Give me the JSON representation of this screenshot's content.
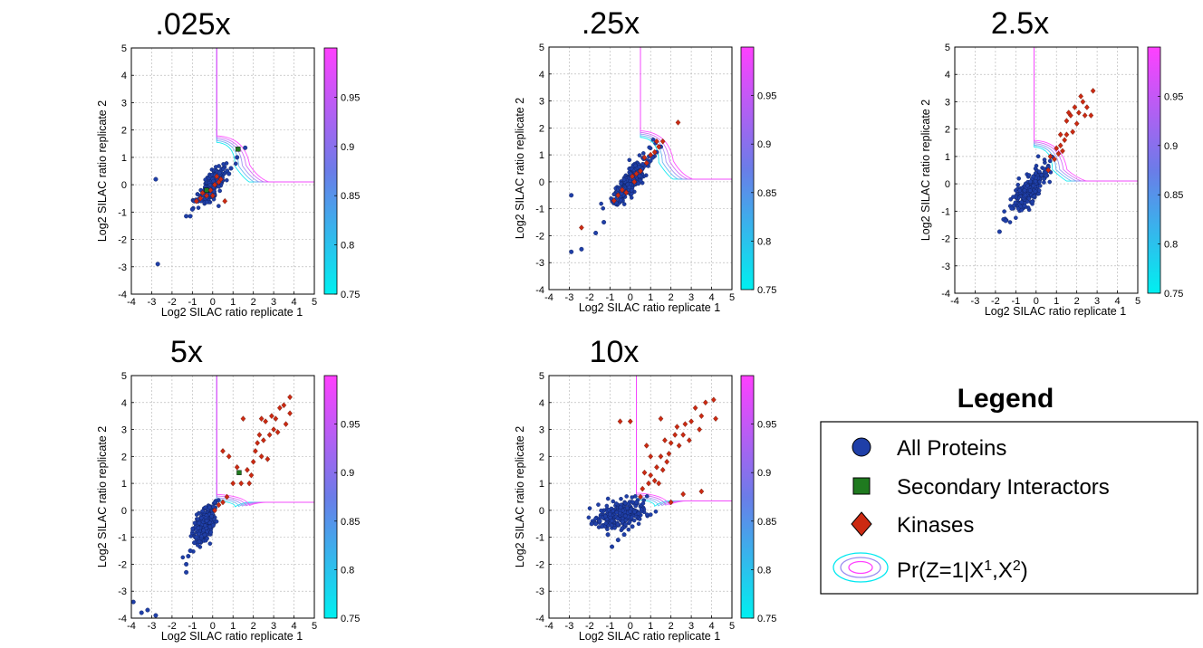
{
  "colors": {
    "protein": "#1f3fa8",
    "secondary": "#1f7a1f",
    "kinase": "#cc2a12",
    "cmap_low": "#00f0f0",
    "cmap_high": "#ff40ff",
    "grid": "#bdbdbd"
  },
  "colorbar": {
    "range": [
      0.75,
      1.0
    ],
    "ticks": [
      "0.75",
      "0.8",
      "0.85",
      "0.9",
      "0.95"
    ]
  },
  "legend": {
    "title": "Legend",
    "items": [
      {
        "label": "All Proteins",
        "marker": "circle-icon"
      },
      {
        "label": "Secondary Interactors",
        "marker": "square-icon"
      },
      {
        "label": "Kinases",
        "marker": "diamond-icon"
      },
      {
        "label": "Pr(Z=1|X",
        "sup1": "1",
        "mid": ",X",
        "sup2": "2",
        "end": ")",
        "marker": "contour-ellipse-icon"
      }
    ]
  },
  "chart_data": [
    {
      "type": "scatter",
      "title": ".025x",
      "xlabel": "Log2 SILAC ratio replicate 1",
      "ylabel": "Log2 SILAC ratio replicate 2",
      "xlim": [
        -4,
        5
      ],
      "ylim": [
        -4,
        5
      ],
      "grid": true,
      "xticks": [
        -4,
        -3,
        -2,
        -1,
        0,
        1,
        2,
        3,
        4,
        5
      ],
      "yticks": [
        -4,
        -3,
        -2,
        -1,
        0,
        1,
        2,
        3,
        4,
        5
      ],
      "threshold": {
        "x": 0.2,
        "y": 1.5
      },
      "cluster": {
        "cx": 0.0,
        "cy": 0.0,
        "spread": 0.45,
        "minor": 0.17,
        "slope": 1
      },
      "series": [
        {
          "name": "All Proteins",
          "points": [
            [
              -2.8,
              0.2
            ],
            [
              -2.7,
              -2.9
            ],
            [
              -1.3,
              -1.15
            ],
            [
              -1.1,
              -1.15
            ],
            [
              1.6,
              1.35
            ],
            [
              1.2,
              1.0
            ],
            [
              0.9,
              0.6
            ],
            [
              -1.0,
              -0.9
            ],
            [
              0.8,
              0.4
            ],
            [
              -0.9,
              -0.6
            ]
          ]
        },
        {
          "name": "Secondary Interactors",
          "points": [
            [
              1.25,
              1.3
            ],
            [
              -0.3,
              -0.2
            ]
          ]
        },
        {
          "name": "Kinases",
          "points": [
            [
              -0.6,
              -0.5
            ],
            [
              -0.3,
              -0.4
            ],
            [
              0.1,
              0.0
            ],
            [
              0.4,
              0.2
            ],
            [
              -0.1,
              -0.2
            ],
            [
              0.2,
              0.3
            ],
            [
              -0.5,
              -0.3
            ],
            [
              0.0,
              -0.4
            ],
            [
              0.3,
              0.1
            ],
            [
              -0.8,
              -0.6
            ],
            [
              0.6,
              -0.6
            ]
          ]
        }
      ]
    },
    {
      "type": "scatter",
      "title": ".25x",
      "xlabel": "Log2 SILAC ratio replicate 1",
      "ylabel": "Log2 SILAC ratio replicate 2",
      "xlim": [
        -4,
        5
      ],
      "ylim": [
        -4,
        5
      ],
      "grid": true,
      "xticks": [
        -4,
        -3,
        -2,
        -1,
        0,
        1,
        2,
        3,
        4,
        5
      ],
      "yticks": [
        -4,
        -3,
        -2,
        -1,
        0,
        1,
        2,
        3,
        4,
        5
      ],
      "threshold": {
        "x": 0.5,
        "y": 1.6
      },
      "cluster": {
        "cx": 0.0,
        "cy": 0.0,
        "spread": 0.6,
        "minor": 0.18,
        "slope": 1
      },
      "series": [
        {
          "name": "All Proteins",
          "points": [
            [
              -2.9,
              -0.5
            ],
            [
              -2.9,
              -2.6
            ],
            [
              -2.4,
              -2.5
            ],
            [
              -1.7,
              -1.9
            ],
            [
              -1.3,
              -1.5
            ],
            [
              1.3,
              1.1
            ],
            [
              1.5,
              1.3
            ],
            [
              1.1,
              0.9
            ],
            [
              0.9,
              0.7
            ]
          ]
        },
        {
          "name": "Secondary Interactors",
          "points": []
        },
        {
          "name": "Kinases",
          "points": [
            [
              -2.4,
              -1.7
            ],
            [
              2.35,
              2.2
            ],
            [
              1.6,
              1.5
            ],
            [
              1.4,
              1.3
            ],
            [
              1.2,
              1.1
            ],
            [
              1.0,
              1.0
            ],
            [
              0.8,
              0.7
            ],
            [
              0.5,
              0.4
            ],
            [
              -0.2,
              -0.4
            ],
            [
              0.1,
              0.2
            ],
            [
              -0.6,
              -0.5
            ],
            [
              -0.4,
              -0.3
            ],
            [
              0.2,
              0.0
            ],
            [
              0.3,
              0.3
            ],
            [
              -0.8,
              -0.7
            ],
            [
              1.3,
              1.5
            ],
            [
              0.7,
              0.9
            ]
          ]
        }
      ]
    },
    {
      "type": "scatter",
      "title": "2.5x",
      "xlabel": "Log2 SILAC ratio replicate 1",
      "ylabel": "Log2 SILAC ratio replicate 2",
      "xlim": [
        -4,
        5
      ],
      "ylim": [
        -4,
        5
      ],
      "grid": true,
      "xticks": [
        -4,
        -3,
        -2,
        -1,
        0,
        1,
        2,
        3,
        4,
        5
      ],
      "yticks": [
        -4,
        -3,
        -2,
        -1,
        0,
        1,
        2,
        3,
        4,
        5
      ],
      "threshold": {
        "x": -0.1,
        "y": 1.3
      },
      "cluster": {
        "cx": -0.35,
        "cy": -0.2,
        "spread": 0.5,
        "minor": 0.2,
        "slope": 1
      },
      "series": [
        {
          "name": "All Proteins",
          "points": [
            [
              -1.8,
              -1.75
            ],
            [
              -1.6,
              -1.3
            ],
            [
              -1.5,
              -1.35
            ],
            [
              -1.2,
              -0.9
            ],
            [
              0.6,
              0.6
            ],
            [
              0.5,
              0.3
            ]
          ]
        },
        {
          "name": "Secondary Interactors",
          "points": []
        },
        {
          "name": "Kinases",
          "points": [
            [
              2.8,
              3.4
            ],
            [
              2.7,
              2.5
            ],
            [
              2.5,
              2.8
            ],
            [
              2.4,
              2.5
            ],
            [
              2.3,
              3.0
            ],
            [
              2.1,
              2.6
            ],
            [
              2.0,
              2.2
            ],
            [
              1.9,
              2.8
            ],
            [
              1.7,
              2.5
            ],
            [
              1.6,
              2.6
            ],
            [
              1.5,
              2.3
            ],
            [
              1.5,
              1.8
            ],
            [
              1.4,
              1.6
            ],
            [
              1.3,
              1.2
            ],
            [
              1.2,
              1.4
            ],
            [
              1.1,
              1.1
            ],
            [
              1.0,
              1.3
            ],
            [
              0.9,
              0.9
            ],
            [
              0.7,
              1.0
            ],
            [
              0.6,
              0.5
            ],
            [
              2.2,
              3.2
            ],
            [
              1.8,
              1.9
            ],
            [
              1.2,
              1.8
            ]
          ]
        }
      ]
    },
    {
      "type": "scatter",
      "title": "5x",
      "xlabel": "Log2 SILAC ratio replicate 1",
      "ylabel": "Log2 SILAC ratio replicate 2",
      "xlim": [
        -4,
        5
      ],
      "ylim": [
        -4,
        5
      ],
      "grid": true,
      "xticks": [
        -4,
        -3,
        -2,
        -1,
        0,
        1,
        2,
        3,
        4,
        5
      ],
      "yticks": [
        -4,
        -3,
        -2,
        -1,
        0,
        1,
        2,
        3,
        4,
        5
      ],
      "threshold": {
        "x": 0.2,
        "y": 0.3
      },
      "cluster": {
        "cx": -0.4,
        "cy": -0.5,
        "spread": 0.4,
        "minor": 0.22,
        "slope": 1.6
      },
      "series": [
        {
          "name": "All Proteins",
          "points": [
            [
              -3.9,
              -3.4
            ],
            [
              -3.5,
              -3.8
            ],
            [
              -3.2,
              -3.7
            ],
            [
              -2.8,
              -3.9
            ],
            [
              -1.3,
              -2.3
            ],
            [
              -1.3,
              -2.0
            ],
            [
              -1.2,
              -1.7
            ],
            [
              -1.1,
              -1.5
            ],
            [
              -0.9,
              -1.2
            ],
            [
              -0.8,
              -1.0
            ]
          ]
        },
        {
          "name": "Secondary Interactors",
          "points": [
            [
              1.3,
              1.4
            ]
          ]
        },
        {
          "name": "Kinases",
          "points": [
            [
              3.8,
              4.2
            ],
            [
              3.8,
              3.6
            ],
            [
              3.6,
              3.2
            ],
            [
              3.5,
              3.9
            ],
            [
              3.3,
              3.8
            ],
            [
              3.1,
              3.4
            ],
            [
              3.0,
              3.0
            ],
            [
              2.9,
              3.5
            ],
            [
              2.8,
              2.8
            ],
            [
              2.6,
              3.3
            ],
            [
              2.5,
              2.6
            ],
            [
              2.4,
              3.4
            ],
            [
              2.3,
              2.8
            ],
            [
              2.2,
              2.5
            ],
            [
              2.1,
              2.2
            ],
            [
              2.0,
              1.8
            ],
            [
              1.9,
              1.3
            ],
            [
              1.8,
              1.0
            ],
            [
              1.7,
              1.5
            ],
            [
              1.5,
              3.4
            ],
            [
              1.4,
              1.0
            ],
            [
              1.2,
              1.6
            ],
            [
              1.0,
              1.0
            ],
            [
              0.8,
              2.0
            ],
            [
              0.7,
              0.5
            ],
            [
              0.5,
              0.3
            ],
            [
              0.3,
              0.2
            ],
            [
              0.1,
              0.0
            ],
            [
              0.5,
              2.2
            ],
            [
              2.4,
              2.0
            ],
            [
              2.7,
              1.9
            ],
            [
              3.2,
              2.9
            ]
          ]
        }
      ]
    },
    {
      "type": "scatter",
      "title": "10x",
      "xlabel": "Log2 SILAC ratio replicate 1",
      "ylabel": "Log2 SILAC ratio replicate 2",
      "xlim": [
        -4,
        5
      ],
      "ylim": [
        -4,
        5
      ],
      "grid": true,
      "xticks": [
        -4,
        -3,
        -2,
        -1,
        0,
        1,
        2,
        3,
        4,
        5
      ],
      "yticks": [
        -4,
        -3,
        -2,
        -1,
        0,
        1,
        2,
        3,
        4,
        5
      ],
      "threshold": {
        "x": 0.3,
        "y": 0.35
      },
      "cluster": {
        "cx": -0.5,
        "cy": -0.15,
        "spread": 0.6,
        "minor": 0.22,
        "slope": 0.2
      },
      "series": [
        {
          "name": "All Proteins",
          "points": [
            [
              -1.9,
              -0.5
            ],
            [
              -1.7,
              -0.5
            ],
            [
              -1.5,
              -0.4
            ],
            [
              -1.4,
              -0.6
            ],
            [
              -1.1,
              -0.9
            ],
            [
              -0.9,
              -1.35
            ],
            [
              -0.6,
              -1.1
            ],
            [
              -0.3,
              -0.9
            ],
            [
              0.1,
              -0.6
            ],
            [
              0.3,
              0.3
            ]
          ]
        },
        {
          "name": "Secondary Interactors",
          "points": []
        },
        {
          "name": "Kinases",
          "points": [
            [
              -0.5,
              3.3
            ],
            [
              0.0,
              3.3
            ],
            [
              4.1,
              4.1
            ],
            [
              4.2,
              3.4
            ],
            [
              3.7,
              4.0
            ],
            [
              3.5,
              3.5
            ],
            [
              3.4,
              3.0
            ],
            [
              3.2,
              3.8
            ],
            [
              3.0,
              3.3
            ],
            [
              2.9,
              2.6
            ],
            [
              2.7,
              3.2
            ],
            [
              2.6,
              2.8
            ],
            [
              2.4,
              2.4
            ],
            [
              2.3,
              3.1
            ],
            [
              2.2,
              2.8
            ],
            [
              2.0,
              2.5
            ],
            [
              1.9,
              2.1
            ],
            [
              1.8,
              1.8
            ],
            [
              1.7,
              2.6
            ],
            [
              1.6,
              1.5
            ],
            [
              1.5,
              2.0
            ],
            [
              1.4,
              1.0
            ],
            [
              1.3,
              1.6
            ],
            [
              1.2,
              1.1
            ],
            [
              1.0,
              2.0
            ],
            [
              1.0,
              1.3
            ],
            [
              0.9,
              1.0
            ],
            [
              0.8,
              2.4
            ],
            [
              0.7,
              1.4
            ],
            [
              0.6,
              0.8
            ],
            [
              0.5,
              0.5
            ],
            [
              1.5,
              3.4
            ],
            [
              3.5,
              0.7
            ],
            [
              2.0,
              0.3
            ],
            [
              2.6,
              0.6
            ]
          ]
        }
      ]
    }
  ]
}
